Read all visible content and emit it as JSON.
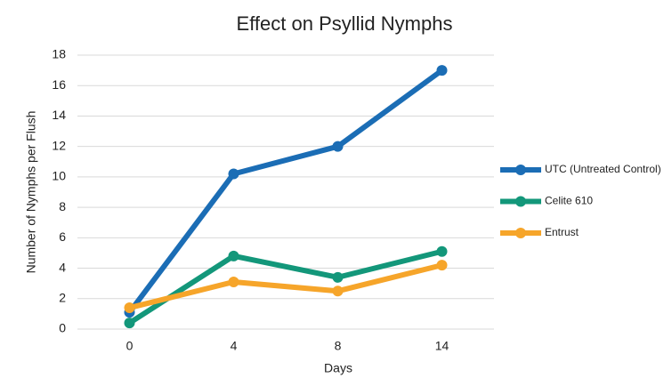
{
  "chart_data": {
    "type": "line",
    "title": "Effect on Psyllid Nymphs",
    "x_label": "Days",
    "y_label": "Number of Nymphs per Flush",
    "categories": [
      "0",
      "4",
      "8",
      "14"
    ],
    "series": [
      {
        "name": "UTC (Untreated Control)",
        "color": "#1b6db5",
        "values": [
          1.1,
          10.2,
          12,
          17
        ]
      },
      {
        "name": "Celite 610",
        "color": "#13977a",
        "values": [
          0.4,
          4.8,
          3.4,
          5.1
        ]
      },
      {
        "name": "Entrust",
        "color": "#f6a52a",
        "values": [
          1.4,
          3.1,
          2.5,
          4.2
        ]
      }
    ],
    "ylim": [
      0,
      18
    ],
    "yticks": [
      0,
      2,
      4,
      6,
      8,
      10,
      12,
      14,
      16,
      18
    ],
    "grid": true,
    "legend": "right"
  }
}
